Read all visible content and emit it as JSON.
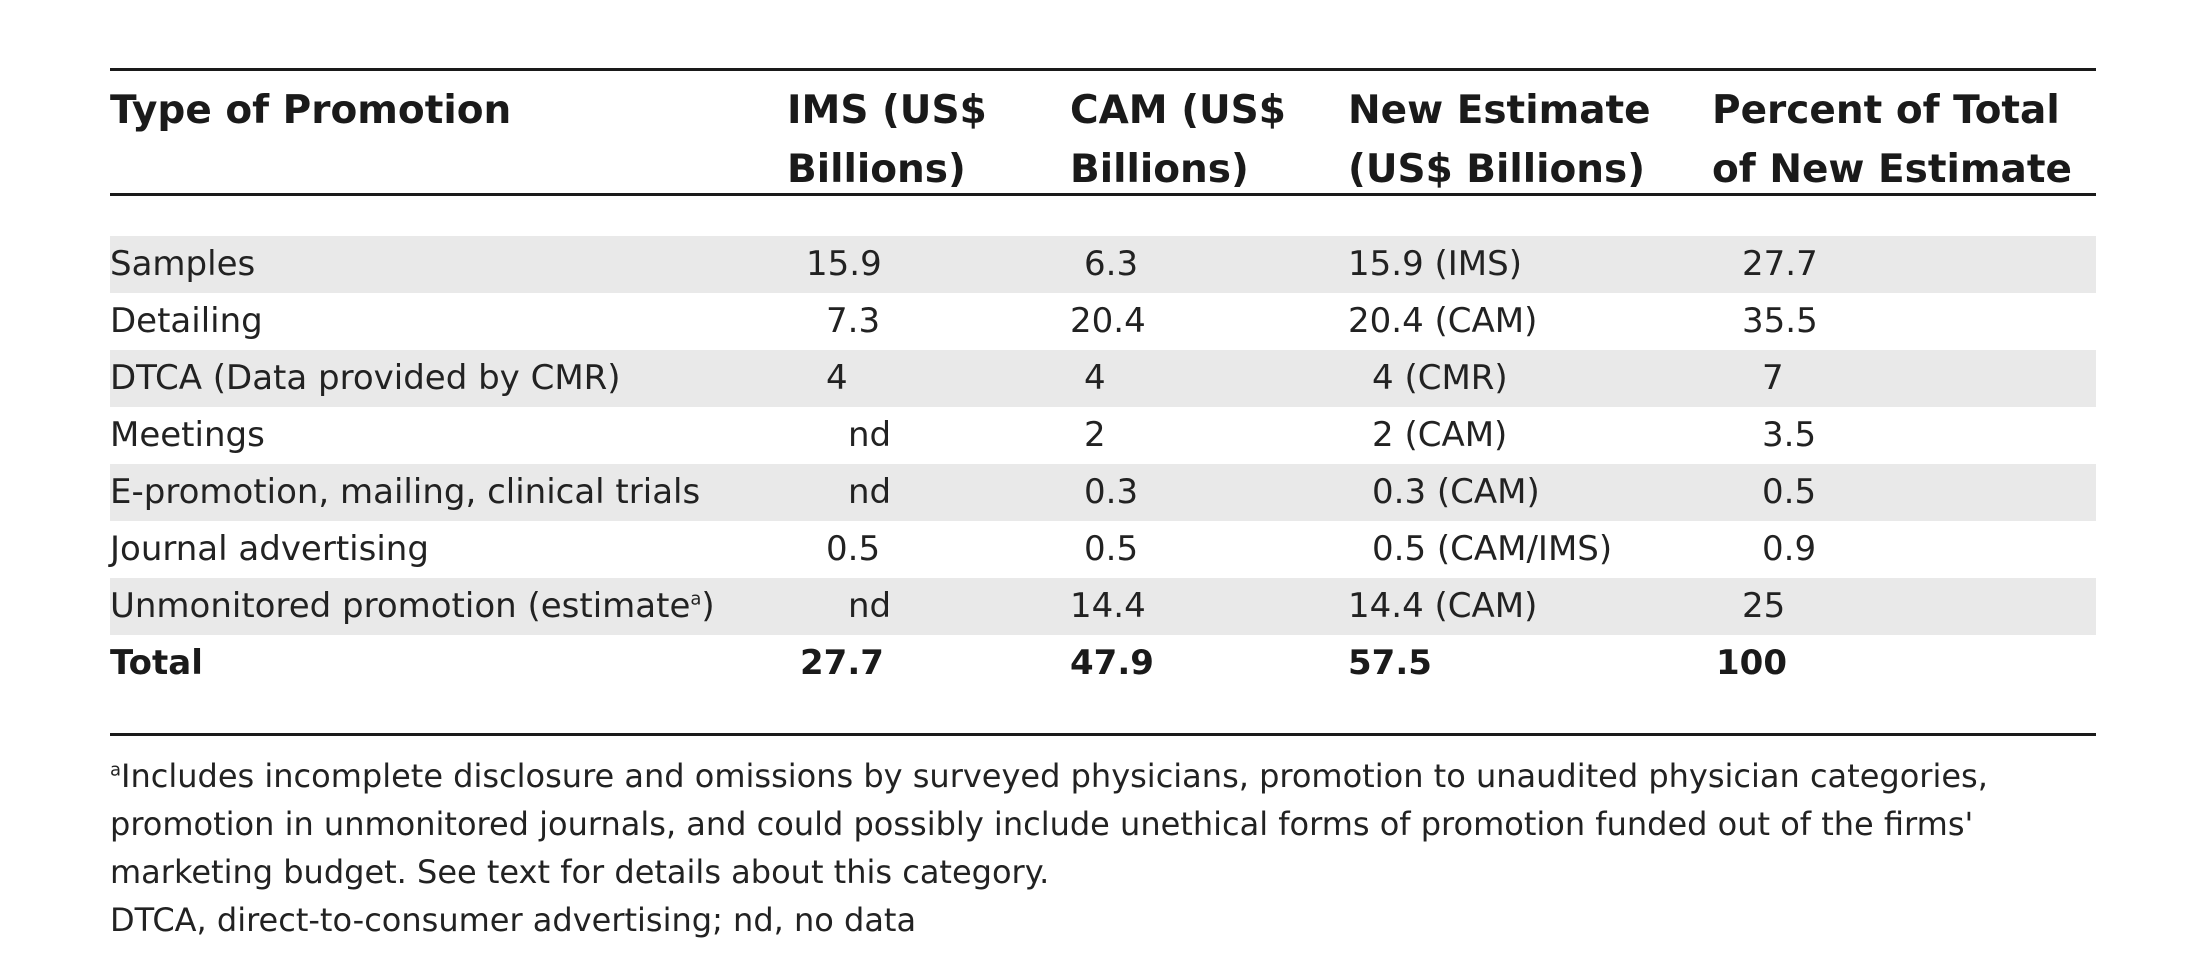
{
  "table": {
    "headers": [
      [
        "Type of Promotion"
      ],
      [
        "IMS  (US$",
        "Billions)"
      ],
      [
        "CAM (US$",
        "Billions)"
      ],
      [
        "New Estimate",
        "(US$ Billions)"
      ],
      [
        "Percent of Total",
        "of New Estimate"
      ]
    ],
    "rows": [
      {
        "label": "Samples",
        "ims": "15.9",
        "cam": "6.3",
        "new_estimate": "15.9 (IMS)",
        "percent": "27.7"
      },
      {
        "label": "Detailing",
        "ims": "7.3",
        "cam": "20.4",
        "new_estimate": "20.4 (CAM)",
        "percent": "35.5"
      },
      {
        "label": "DTCA (Data provided by CMR)",
        "ims": "4",
        "cam": "4",
        "new_estimate": "4 (CMR)",
        "percent": "7"
      },
      {
        "label": "Meetings",
        "ims": "nd",
        "cam": "2",
        "new_estimate": "2 (CAM)",
        "percent": "3.5"
      },
      {
        "label": "E-promotion, mailing, clinical trials",
        "ims": "nd",
        "cam": "0.3",
        "new_estimate": "0.3 (CAM)",
        "percent": "0.5"
      },
      {
        "label": "Journal advertising",
        "ims": "0.5",
        "cam": "0.5",
        "new_estimate": "0.5 (CAM/IMS)",
        "percent": "0.9"
      },
      {
        "label": "Unmonitored promotion  (estimate",
        "label_sup": "a",
        "label_tail": ")",
        "ims": "nd",
        "cam": "14.4",
        "new_estimate": "14.4 (CAM)",
        "percent": "25"
      }
    ],
    "total": {
      "label": "Total",
      "ims": "27.7",
      "cam": "47.9",
      "new_estimate": "57.5",
      "percent": "100"
    }
  },
  "footnotes": {
    "a_marker": "a",
    "a_text": "Includes incomplete disclosure and omissions by surveyed physicians, promotion to unaudited physician categories, promotion in unmonitored journals, and could possibly include unethical forms of promotion funded out of the firms' marketing budget. See text for details about this category.",
    "abbreviations": "DTCA, direct-to-consumer advertising; nd, no data"
  }
}
